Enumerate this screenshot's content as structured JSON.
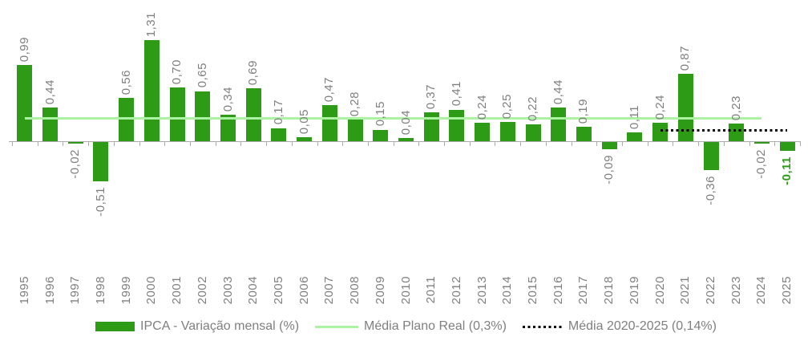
{
  "chart_data": {
    "type": "bar",
    "title": "",
    "xlabel": "",
    "ylabel": "",
    "grid": false,
    "legend_position": "bottom",
    "ylim": [
      -0.6,
      1.4
    ],
    "categories": [
      "1995",
      "1996",
      "1997",
      "1998",
      "1999",
      "2000",
      "2001",
      "2002",
      "2003",
      "2004",
      "2005",
      "2006",
      "2007",
      "2008",
      "2009",
      "2010",
      "2011",
      "2012",
      "2013",
      "2014",
      "2015",
      "2016",
      "2017",
      "2018",
      "2019",
      "2020",
      "2021",
      "2022",
      "2023",
      "2024",
      "2025"
    ],
    "series": [
      {
        "name": "IPCA - Variação mensal (%)",
        "values": [
          0.99,
          0.44,
          -0.02,
          -0.51,
          0.56,
          1.31,
          0.7,
          0.65,
          0.34,
          0.69,
          0.17,
          0.05,
          0.47,
          0.28,
          0.15,
          0.04,
          0.37,
          0.41,
          0.24,
          0.25,
          0.22,
          0.44,
          0.19,
          -0.09,
          0.11,
          0.24,
          0.87,
          -0.36,
          0.23,
          -0.02,
          -0.11
        ]
      }
    ],
    "value_labels": [
      "0,99",
      "0,44",
      "-0,02",
      "-0,51",
      "0,56",
      "1,31",
      "0,70",
      "0,65",
      "0,34",
      "0,69",
      "0,17",
      "0,05",
      "0,47",
      "0,28",
      "0,15",
      "0,04",
      "0,37",
      "0,41",
      "0,24",
      "0,25",
      "0,22",
      "0,44",
      "0,19",
      "-0,09",
      "0,11",
      "0,24",
      "0,87",
      "-0,36",
      "0,23",
      "-0,02",
      "-0,11"
    ],
    "highlight_last_label": true,
    "reference_lines": [
      {
        "name": "Média Plano Real (0,3%)",
        "value": 0.3,
        "style": "solid",
        "span": [
          "1995",
          "2024"
        ]
      },
      {
        "name": "Média 2020-2025 (0,14%)",
        "value": 0.14,
        "style": "dotted",
        "span": [
          "2020",
          "2025"
        ]
      }
    ],
    "legend": [
      {
        "label": "IPCA - Variação mensal (%)",
        "swatch": "bar"
      },
      {
        "label": "Média Plano Real (0,3%)",
        "swatch": "line"
      },
      {
        "label": "Média 2020-2025 (0,14%)",
        "swatch": "dotted"
      }
    ],
    "colors": {
      "bar": "#2E9B17",
      "ref_solid": "#ACF2A3",
      "ref_dotted": "#000000",
      "text": "#7F7F7F",
      "highlight": "#2E9B17",
      "axis": "#ABABAB"
    }
  }
}
